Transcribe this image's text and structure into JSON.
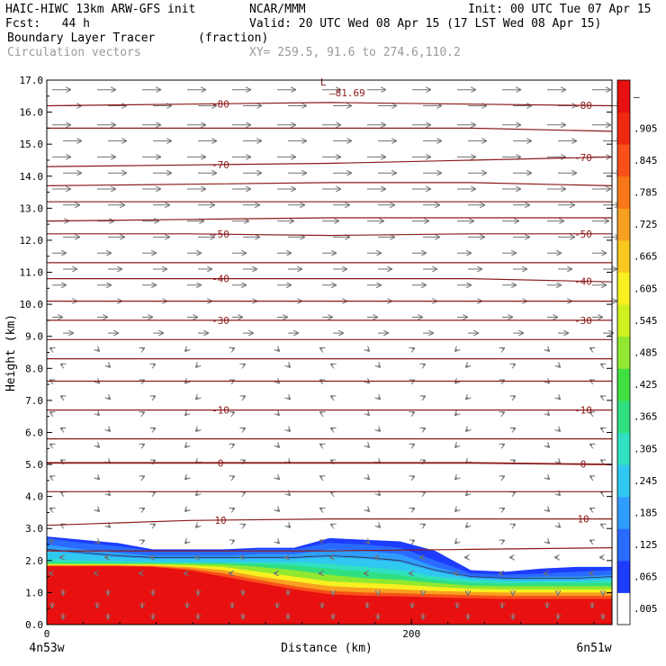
{
  "header": {
    "model": "HAIC-HIWC 13km ARW-GFS init",
    "org": "NCAR/MMM",
    "init": "Init: 00 UTC Tue 07 Apr 15",
    "fcst": "Fcst:   44 h",
    "valid": "Valid: 20 UTC Wed 08 Apr 15 (17 LST Wed 08 Apr 15)",
    "field": "Boundary Layer Tracer",
    "units": "(fraction)",
    "vectors": "Circulation vectors",
    "xy": "XY= 259.5, 91.6 to 274.6,110.2"
  },
  "chart_data": {
    "type": "heatmap",
    "xlabel": "Distance (km)",
    "ylabel": "Height (km)",
    "xlim": [
      0,
      310
    ],
    "ylim": [
      0,
      17
    ],
    "x_ticks": [
      {
        "value": 0,
        "label": "0"
      },
      {
        "value": 200,
        "label": "200"
      }
    ],
    "x_endpoint_labels": {
      "left": "4n53w",
      "right": "6n51w"
    },
    "y_ticks": [
      "0.0",
      "1.0",
      "2.0",
      "3.0",
      "4.0",
      "5.0",
      "6.0",
      "7.0",
      "8.0",
      "9.0",
      "10.0",
      "11.0",
      "12.0",
      "13.0",
      "14.0",
      "15.0",
      "16.0",
      "17.0"
    ],
    "colorbar": {
      "labels": [
        ".005",
        ".065",
        ".125",
        ".185",
        ".245",
        ".305",
        ".365",
        ".425",
        ".485",
        ".545",
        ".605",
        ".665",
        ".725",
        ".785",
        ".845",
        ".905",
        "–"
      ],
      "colors": [
        "#ffffff",
        "#1e3cff",
        "#2a6bff",
        "#2f9cff",
        "#30c8f0",
        "#30e0c0",
        "#30e080",
        "#40e040",
        "#90e830",
        "#d0f020",
        "#f8f020",
        "#f8c820",
        "#f8a020",
        "#f87818",
        "#f85018",
        "#f02810",
        "#e81010"
      ]
    },
    "isotherms": [
      {
        "label": "-80",
        "y": [
          16.2,
          16.25,
          16.3,
          16.25,
          16.2
        ]
      },
      {
        "label": "",
        "y": [
          15.5,
          15.5,
          15.5,
          15.5,
          15.4
        ]
      },
      {
        "label": "-70",
        "y": [
          14.3,
          14.35,
          14.4,
          14.5,
          14.6
        ]
      },
      {
        "label": "",
        "y": [
          13.7,
          13.75,
          13.8,
          13.8,
          13.7
        ]
      },
      {
        "label": "",
        "y": [
          13.2,
          13.2,
          13.2,
          13.2,
          13.2
        ]
      },
      {
        "label": "",
        "y": [
          12.6,
          12.65,
          12.7,
          12.7,
          12.7
        ]
      },
      {
        "label": "-50",
        "y": [
          12.2,
          12.2,
          12.15,
          12.2,
          12.2
        ]
      },
      {
        "label": "",
        "y": [
          11.3,
          11.3,
          11.3,
          11.3,
          11.3
        ]
      },
      {
        "label": "-40",
        "y": [
          10.8,
          10.8,
          10.8,
          10.8,
          10.7
        ]
      },
      {
        "label": "",
        "y": [
          10.1,
          10.1,
          10.1,
          10.1,
          10.1
        ]
      },
      {
        "label": "-30",
        "y": [
          9.5,
          9.5,
          9.5,
          9.5,
          9.5
        ]
      },
      {
        "label": "",
        "y": [
          8.9,
          8.9,
          8.9,
          8.9,
          8.9
        ]
      },
      {
        "label": "",
        "y": [
          8.3,
          8.3,
          8.3,
          8.3,
          8.3
        ]
      },
      {
        "label": "",
        "y": [
          7.6,
          7.6,
          7.6,
          7.6,
          7.6
        ]
      },
      {
        "label": "-10",
        "y": [
          6.7,
          6.7,
          6.7,
          6.7,
          6.7
        ]
      },
      {
        "label": "",
        "y": [
          5.8,
          5.8,
          5.8,
          5.8,
          5.8
        ]
      },
      {
        "label": "0",
        "y": [
          5.05,
          5.05,
          5.05,
          5.05,
          5.0
        ]
      },
      {
        "label": "",
        "y": [
          4.15,
          4.15,
          4.15,
          4.15,
          4.15
        ]
      },
      {
        "label": "10",
        "y": [
          3.1,
          3.25,
          3.3,
          3.3,
          3.3
        ]
      },
      {
        "label": "",
        "y": [
          2.3,
          2.3,
          2.3,
          2.35,
          2.4
        ]
      }
    ],
    "annotations": [
      {
        "text": "L",
        "x": 150,
        "y": 16.95
      },
      {
        "text": "–81.69",
        "x": 155,
        "y": 16.6
      }
    ],
    "tracer_layers": [
      {
        "value": 0.035,
        "top": [
          2.75,
          2.65,
          2.55,
          2.35,
          2.35,
          2.35,
          2.4,
          2.4,
          2.7,
          2.65,
          2.6,
          2.3,
          1.7,
          1.65,
          1.75,
          1.8,
          1.8
        ]
      },
      {
        "value": 0.095,
        "top": [
          2.7,
          2.55,
          2.45,
          2.3,
          2.3,
          2.3,
          2.35,
          2.35,
          2.55,
          2.5,
          2.4,
          2.0,
          1.6,
          1.55,
          1.6,
          1.65,
          1.7
        ]
      },
      {
        "value": 0.155,
        "top": [
          2.5,
          2.35,
          2.25,
          2.15,
          2.15,
          2.15,
          2.2,
          2.2,
          2.35,
          2.3,
          2.2,
          1.8,
          1.5,
          1.45,
          1.5,
          1.5,
          1.55
        ]
      },
      {
        "value": 0.215,
        "top": [
          2.3,
          2.2,
          2.1,
          2.05,
          2.05,
          2.05,
          2.05,
          2.05,
          2.1,
          2.05,
          1.95,
          1.65,
          1.45,
          1.4,
          1.4,
          1.4,
          1.45
        ]
      },
      {
        "value": 0.275,
        "top": [
          2.05,
          2.0,
          1.98,
          1.96,
          1.95,
          1.95,
          1.95,
          1.95,
          1.9,
          1.8,
          1.7,
          1.5,
          1.4,
          1.35,
          1.35,
          1.35,
          1.4
        ]
      },
      {
        "value": 0.335,
        "top": [
          1.95,
          1.93,
          1.92,
          1.92,
          1.92,
          1.92,
          1.9,
          1.85,
          1.75,
          1.65,
          1.55,
          1.4,
          1.3,
          1.28,
          1.3,
          1.3,
          1.3
        ]
      },
      {
        "value": 0.455,
        "top": [
          1.9,
          1.9,
          1.9,
          1.9,
          1.9,
          1.88,
          1.8,
          1.7,
          1.55,
          1.45,
          1.4,
          1.3,
          1.22,
          1.2,
          1.2,
          1.2,
          1.2
        ]
      },
      {
        "value": 0.575,
        "top": [
          1.88,
          1.88,
          1.88,
          1.88,
          1.85,
          1.8,
          1.65,
          1.5,
          1.35,
          1.3,
          1.25,
          1.18,
          1.12,
          1.1,
          1.1,
          1.1,
          1.1
        ]
      },
      {
        "value": 0.695,
        "top": [
          1.85,
          1.85,
          1.85,
          1.85,
          1.8,
          1.7,
          1.5,
          1.35,
          1.2,
          1.15,
          1.1,
          1.05,
          1.02,
          1.0,
          1.0,
          1.0,
          1.0
        ]
      },
      {
        "value": 0.815,
        "top": [
          1.85,
          1.85,
          1.85,
          1.82,
          1.75,
          1.6,
          1.4,
          1.2,
          1.05,
          1.0,
          0.98,
          0.95,
          0.92,
          0.9,
          0.9,
          0.9,
          0.9
        ]
      },
      {
        "value": 0.905,
        "top": [
          1.82,
          1.82,
          1.82,
          1.8,
          1.7,
          1.5,
          1.3,
          1.1,
          0.95,
          0.9,
          0.88,
          0.85,
          0.82,
          0.8,
          0.8,
          0.8,
          0.8
        ]
      },
      {
        "value": 0.955,
        "top": [
          1.8,
          1.8,
          1.8,
          1.78,
          1.65,
          1.45,
          1.2,
          1.0,
          0.88,
          0.82,
          0.8,
          0.78,
          0.75,
          0.72,
          0.72,
          0.72,
          0.72
        ]
      }
    ],
    "vectors": {
      "desc": "circulation vectors on a regular grid"
    }
  }
}
